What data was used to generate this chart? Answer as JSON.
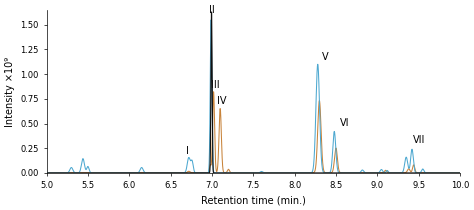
{
  "xlabel": "Retention time (min.)",
  "ylabel": "Intensity ×10⁹",
  "xlim": [
    5.0,
    10.0
  ],
  "ylim": [
    0,
    1650000000.0
  ],
  "yticks": [
    0.0,
    250000000.0,
    500000000.0,
    750000000.0,
    1000000000.0,
    1250000000.0,
    1500000000.0
  ],
  "ytick_labels": [
    "0.00",
    "0.25",
    "0.50",
    "0.75",
    "1.00",
    "1.25",
    "1.50"
  ],
  "xticks": [
    5.0,
    5.5,
    6.0,
    6.5,
    7.0,
    7.5,
    8.0,
    8.5,
    9.0,
    9.5,
    10.0
  ],
  "blue_color": "#4da8d0",
  "orange_color": "#c8833a",
  "black_color": "#111111",
  "background": "#ffffff",
  "label_fontsize": 7,
  "axis_fontsize": 7,
  "tick_fontsize": 6
}
